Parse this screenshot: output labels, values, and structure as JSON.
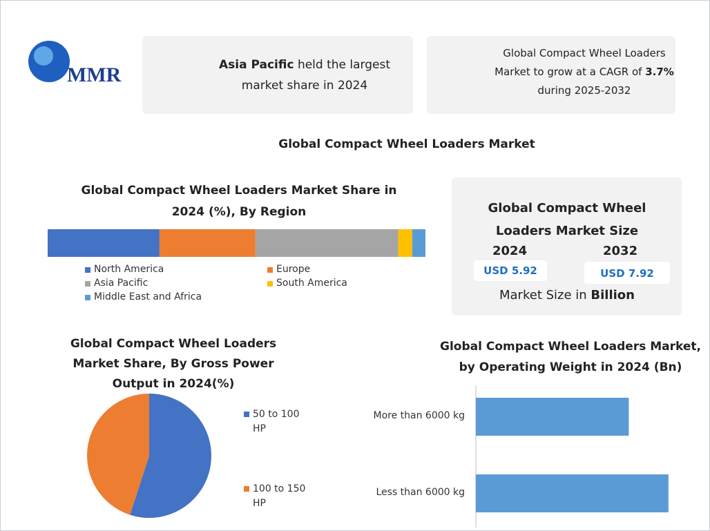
{
  "logo": "MMR",
  "cards": [
    {
      "parts": [
        "Asia Pacific",
        " held the largest market share in 2024"
      ]
    },
    {
      "parts": [
        "Global Compact Wheel Loaders Market to grow at a CAGR of ",
        "3.7%",
        " during 2025-2032"
      ]
    }
  ],
  "title": "Global Compact Wheel Loaders Market",
  "size_panel": {
    "title": "Global Compact Wheel Loaders Market Size",
    "years": [
      "2024",
      "2032"
    ],
    "sizes": [
      "USD 5.92",
      "USD 7.92"
    ],
    "note": [
      "Market Size in ",
      "Billion"
    ]
  },
  "chart_data": [
    {
      "type": "stacked_bar",
      "title": "Global Compact Wheel Loaders Market Share in 2024 (%), By Region",
      "series": [
        {
          "name": "North America",
          "color": "#4472c4",
          "values": [
            29.6
          ]
        },
        {
          "name": "Europe",
          "color": "#ed7d31",
          "values": [
            25.4
          ]
        },
        {
          "name": "Asia Pacific",
          "color": "#a5a5a5",
          "values": [
            37.8
          ]
        },
        {
          "name": "South America",
          "color": "#ffc000",
          "values": [
            3.7
          ]
        },
        {
          "name": "Middle East and Africa",
          "color": "#5b9bd5",
          "values": [
            3.5
          ]
        }
      ]
    },
    {
      "type": "pie",
      "title": "Global Compact Wheel Loaders Market Share, By Gross Power Output in 2024(%)",
      "categories": [
        "50 to 100 HP",
        "100 to 150 HP"
      ],
      "values": [
        55,
        45
      ],
      "colors": [
        "#4472c4",
        "#ed7d31"
      ]
    },
    {
      "type": "bar",
      "title": "Global Compact Wheel Loaders Market, by Operating Weight in 2024 (Bn)",
      "categories": [
        "More than 6000 kg",
        "Less than 6000 kg"
      ],
      "values": [
        2.62,
        3.3
      ],
      "color": "#5b9bd5"
    }
  ]
}
